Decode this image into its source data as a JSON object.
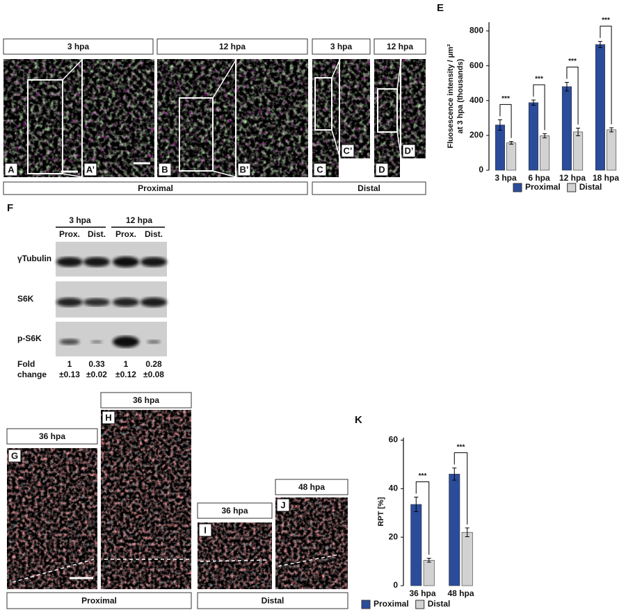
{
  "figure": {
    "top_panels": {
      "headers": [
        "3 hpa",
        "12 hpa",
        "3 hpa",
        "12 hpa"
      ],
      "letters": [
        "A",
        "A’",
        "B",
        "B’",
        "C",
        "C’",
        "D",
        "D’"
      ],
      "regions": [
        "Proximal",
        "Distal"
      ]
    },
    "blot": {
      "letter": "F",
      "times": [
        "3 hpa",
        "12 hpa"
      ],
      "lanes": [
        "Prox.",
        "Dist.",
        "Prox.",
        "Dist."
      ],
      "rows": [
        "γTubulin",
        "S6K",
        "p-S6K"
      ],
      "fold_label": [
        "Fold",
        "change"
      ],
      "fold": [
        [
          "1",
          "±0.13"
        ],
        [
          "0.33",
          "±0.02"
        ],
        [
          "1",
          "±0.12"
        ],
        [
          "0.28",
          "±0.08"
        ]
      ]
    },
    "bottom_panels": {
      "headers": [
        "36 hpa",
        "36 hpa",
        "36 hpa",
        "48 hpa"
      ],
      "letters": [
        "G",
        "H",
        "I",
        "J"
      ],
      "regions": [
        "Proximal",
        "Distal"
      ]
    }
  },
  "chart_data": [
    {
      "type": "bar",
      "panel_label": "E",
      "y_label": [
        "Fluosescence intensity / µm²",
        "at 3 hpa (thousands)"
      ],
      "categories": [
        "3 hpa",
        "6 hpa",
        "12 hpa",
        "18 hpa"
      ],
      "series": [
        {
          "name": "Proximal",
          "color": "#2b4c9b",
          "values": [
            260,
            388,
            480,
            722
          ],
          "errors": [
            30,
            15,
            25,
            18
          ]
        },
        {
          "name": "Distal",
          "color": "#d2d2d2",
          "values": [
            157,
            198,
            220,
            232
          ],
          "errors": [
            8,
            12,
            22,
            12
          ]
        }
      ],
      "significance": [
        "***",
        "***",
        "***",
        "***"
      ],
      "ylim": [
        0,
        850
      ],
      "yticks": [
        0,
        200,
        400,
        600,
        800
      ]
    },
    {
      "type": "bar",
      "panel_label": "K",
      "y_label": [
        "RPT [%]"
      ],
      "categories": [
        "36 hpa",
        "48 hpa"
      ],
      "series": [
        {
          "name": "Proximal",
          "color": "#2b4c9b",
          "values": [
            33.5,
            46
          ],
          "errors": [
            3,
            2.5
          ]
        },
        {
          "name": "Distal",
          "color": "#d2d2d2",
          "values": [
            10.5,
            22
          ],
          "errors": [
            0.8,
            1.8
          ]
        }
      ],
      "significance": [
        "***",
        "***"
      ],
      "ylim": [
        0,
        61
      ],
      "yticks": [
        0,
        20,
        40,
        60
      ]
    }
  ]
}
